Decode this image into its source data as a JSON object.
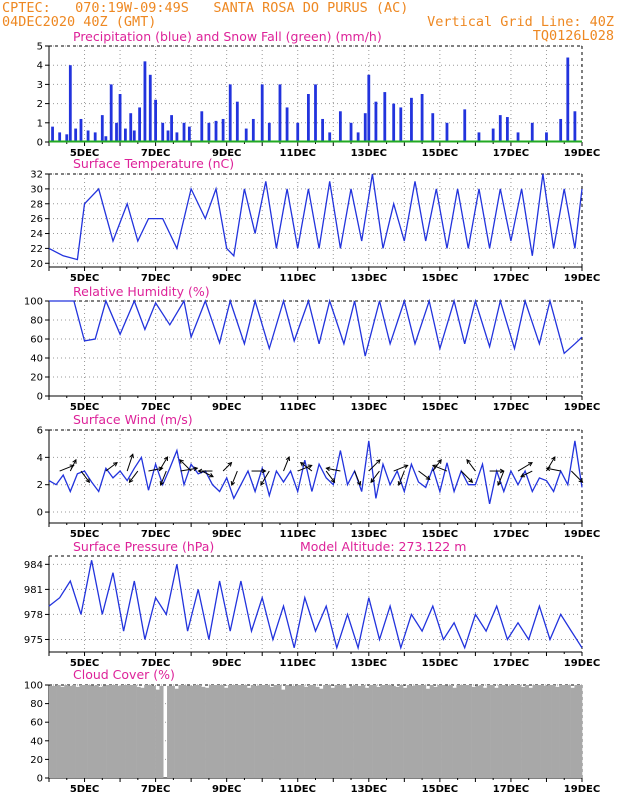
{
  "header": {
    "line1": "CPTEC:   070:19W-09:49S   SANTA ROSA DO PURUS (AC)",
    "line2_left": "04DEC2020 40Z (GMT)",
    "line2_right": "Vertical Grid Line: 40Z",
    "line3_right": "TQ0126L028"
  },
  "x_labels": [
    "5DEC",
    "7DEC",
    "9DEC",
    "11DEC",
    "13DEC",
    "15DEC",
    "17DEC",
    "19DEC"
  ],
  "colors": {
    "accent": "#ee8822",
    "title": "#dd2299",
    "line": "#2233dd",
    "snow": "#22aa22",
    "cloud": "#a8a8a8"
  },
  "chart_data": [
    {
      "type": "bar",
      "title": "Precipitation (blue) and Snow Fall (green) (mm/h)",
      "ylim": [
        0,
        5
      ],
      "yticks": [
        "0",
        "1",
        "2",
        "3",
        "4",
        "5"
      ],
      "x_range": [
        4,
        19
      ],
      "grid": true,
      "series": [
        {
          "name": "Precipitation",
          "x": [
            4.1,
            4.3,
            4.5,
            4.6,
            4.75,
            4.9,
            5.1,
            5.3,
            5.5,
            5.6,
            5.75,
            5.9,
            6.0,
            6.15,
            6.3,
            6.4,
            6.55,
            6.7,
            6.85,
            7.0,
            7.2,
            7.35,
            7.45,
            7.6,
            7.8,
            7.95,
            8.3,
            8.5,
            8.7,
            8.9,
            9.1,
            9.3,
            9.55,
            9.75,
            10.0,
            10.2,
            10.5,
            10.7,
            11.0,
            11.3,
            11.5,
            11.7,
            11.9,
            12.2,
            12.5,
            12.7,
            12.9,
            13.0,
            13.2,
            13.45,
            13.7,
            13.9,
            14.2,
            14.5,
            14.8,
            15.2,
            15.7,
            16.1,
            16.5,
            16.7,
            16.9,
            17.2,
            17.6,
            18.0,
            18.4,
            18.6,
            18.8
          ],
          "values": [
            0.8,
            0.5,
            0.4,
            4.0,
            0.7,
            1.2,
            0.6,
            0.5,
            1.4,
            0.3,
            3.0,
            1.0,
            2.5,
            0.7,
            1.5,
            0.6,
            1.8,
            4.2,
            3.5,
            2.2,
            1.0,
            0.6,
            1.4,
            0.5,
            1.0,
            0.8,
            1.6,
            1.0,
            1.1,
            1.2,
            3.0,
            2.1,
            0.7,
            1.2,
            3.0,
            1.0,
            3.0,
            1.8,
            1.0,
            2.5,
            3.0,
            1.2,
            0.5,
            1.6,
            1.0,
            0.5,
            1.5,
            3.5,
            2.1,
            2.6,
            2.0,
            1.8,
            2.3,
            2.5,
            1.5,
            1.0,
            1.7,
            0.5,
            0.7,
            1.4,
            1.3,
            0.5,
            1.0,
            0.5,
            1.2,
            4.4,
            1.6
          ]
        },
        {
          "name": "Snow Fall",
          "x": [
            4.0,
            19.0
          ],
          "values": [
            0,
            0
          ]
        }
      ]
    },
    {
      "type": "line",
      "title": "Surface Temperature (nC)",
      "ylim": [
        19.5,
        32
      ],
      "yticks": [
        "20",
        "22",
        "24",
        "26",
        "28",
        "30",
        "32"
      ],
      "x": [
        4.0,
        4.4,
        4.8,
        5.0,
        5.4,
        5.8,
        6.2,
        6.5,
        6.8,
        7.2,
        7.6,
        8.0,
        8.4,
        8.7,
        9.0,
        9.2,
        9.5,
        9.8,
        10.1,
        10.4,
        10.7,
        11.0,
        11.3,
        11.6,
        11.9,
        12.2,
        12.5,
        12.8,
        13.1,
        13.4,
        13.7,
        14.0,
        14.3,
        14.6,
        14.9,
        15.2,
        15.5,
        15.8,
        16.1,
        16.4,
        16.7,
        17.0,
        17.3,
        17.6,
        17.9,
        18.2,
        18.5,
        18.8,
        19.0
      ],
      "y": [
        22,
        21,
        20.5,
        28,
        30,
        23,
        28,
        23,
        26,
        26,
        22,
        30,
        26,
        30,
        22,
        21,
        30,
        24,
        31,
        22,
        30,
        22,
        30,
        22,
        31,
        22,
        30,
        23,
        32,
        22,
        28,
        23,
        31,
        23,
        30,
        22,
        30,
        22,
        30,
        22,
        30,
        23,
        30,
        21,
        32,
        22,
        30,
        22,
        30
      ]
    },
    {
      "type": "line",
      "title": "Relative Humidity (%)",
      "ylim": [
        0,
        100
      ],
      "yticks": [
        "0",
        "20",
        "40",
        "60",
        "80",
        "100"
      ],
      "x": [
        4.0,
        4.5,
        4.7,
        5.0,
        5.3,
        5.6,
        6.0,
        6.4,
        6.7,
        7.0,
        7.4,
        7.8,
        8.0,
        8.4,
        8.8,
        9.1,
        9.5,
        9.8,
        10.2,
        10.6,
        10.9,
        11.3,
        11.6,
        11.9,
        12.3,
        12.6,
        12.9,
        13.3,
        13.6,
        14.0,
        14.3,
        14.7,
        15.0,
        15.4,
        15.7,
        16.0,
        16.4,
        16.7,
        17.1,
        17.4,
        17.8,
        18.1,
        18.5,
        18.8,
        19.0
      ],
      "y": [
        100,
        100,
        100,
        58,
        60,
        100,
        65,
        100,
        70,
        98,
        75,
        100,
        62,
        100,
        56,
        100,
        55,
        100,
        50,
        100,
        58,
        100,
        55,
        100,
        55,
        100,
        42,
        100,
        55,
        100,
        55,
        100,
        50,
        100,
        55,
        100,
        52,
        100,
        50,
        100,
        55,
        100,
        45,
        55,
        62
      ]
    },
    {
      "type": "line",
      "title": "Surface Wind (m/s)",
      "ylim": [
        -0.8,
        6
      ],
      "yticks": [
        "0",
        "2",
        "4",
        "6"
      ],
      "x": [
        4.0,
        4.2,
        4.4,
        4.6,
        4.8,
        5.0,
        5.2,
        5.4,
        5.6,
        5.8,
        6.0,
        6.2,
        6.4,
        6.6,
        6.8,
        7.0,
        7.2,
        7.4,
        7.6,
        7.8,
        8.0,
        8.2,
        8.4,
        8.6,
        8.8,
        9.0,
        9.2,
        9.4,
        9.6,
        9.8,
        10.0,
        10.2,
        10.4,
        10.6,
        10.8,
        11.0,
        11.2,
        11.4,
        11.6,
        11.8,
        12.0,
        12.2,
        12.4,
        12.6,
        12.8,
        13.0,
        13.2,
        13.4,
        13.6,
        13.8,
        14.0,
        14.2,
        14.4,
        14.6,
        14.8,
        15.0,
        15.2,
        15.4,
        15.6,
        15.8,
        16.0,
        16.2,
        16.4,
        16.6,
        16.8,
        17.0,
        17.2,
        17.4,
        17.6,
        17.8,
        18.0,
        18.2,
        18.4,
        18.6,
        18.8,
        19.0
      ],
      "y": [
        2.3,
        2.0,
        2.7,
        1.5,
        2.8,
        3.0,
        2.2,
        1.5,
        3.2,
        2.5,
        3.0,
        2.3,
        3.2,
        4.0,
        1.6,
        3.5,
        2.0,
        3.2,
        4.5,
        2.0,
        3.5,
        2.8,
        3.0,
        2.0,
        1.5,
        2.5,
        1.0,
        2.0,
        3.0,
        1.5,
        3.2,
        1.2,
        3.0,
        2.2,
        3.0,
        1.5,
        3.8,
        1.5,
        3.5,
        2.5,
        2.0,
        4.5,
        2.0,
        3.0,
        1.5,
        5.2,
        1.0,
        3.5,
        2.0,
        3.0,
        1.5,
        3.5,
        2.2,
        1.8,
        3.2,
        1.5,
        3.6,
        1.5,
        3.0,
        2.0,
        2.0,
        3.5,
        0.6,
        3.0,
        1.5,
        3.0,
        2.0,
        3.0,
        1.5,
        2.5,
        2.3,
        1.5,
        3.0,
        2.0,
        5.2,
        1.8
      ],
      "vectors": [
        [
          4.3,
          0.5,
          0.2
        ],
        [
          4.6,
          0.2,
          0.4
        ],
        [
          4.9,
          0.3,
          -0.4
        ],
        [
          5.6,
          0.4,
          0.3
        ],
        [
          6.2,
          0.2,
          0.6
        ],
        [
          6.5,
          -0.3,
          -0.4
        ],
        [
          6.8,
          0.5,
          0.1
        ],
        [
          7.1,
          0.3,
          0.5
        ],
        [
          7.3,
          -0.2,
          -0.5
        ],
        [
          7.7,
          0.6,
          0.1
        ],
        [
          8.0,
          -0.4,
          0.4
        ],
        [
          8.3,
          0.4,
          -0.2
        ],
        [
          8.6,
          -0.5,
          0.0
        ],
        [
          8.9,
          0.3,
          0.3
        ],
        [
          9.3,
          -0.2,
          -0.5
        ],
        [
          9.7,
          0.5,
          0.0
        ],
        [
          10.2,
          -0.3,
          -0.5
        ],
        [
          10.6,
          0.2,
          0.5
        ],
        [
          11.0,
          0.5,
          0.2
        ],
        [
          11.4,
          -0.4,
          0.3
        ],
        [
          11.8,
          0.3,
          -0.4
        ],
        [
          12.2,
          -0.5,
          0.1
        ],
        [
          12.6,
          0.2,
          -0.5
        ],
        [
          13.0,
          0.4,
          0.4
        ],
        [
          13.3,
          -0.3,
          -0.4
        ],
        [
          13.7,
          0.5,
          0.2
        ],
        [
          14.0,
          -0.2,
          -0.5
        ],
        [
          14.4,
          0.4,
          -0.3
        ],
        [
          14.8,
          0.3,
          0.4
        ],
        [
          15.2,
          -0.5,
          0.2
        ],
        [
          15.6,
          0.4,
          -0.4
        ],
        [
          16.0,
          -0.3,
          0.4
        ],
        [
          16.4,
          0.5,
          0.0
        ],
        [
          16.8,
          -0.2,
          -0.5
        ],
        [
          17.2,
          0.5,
          0.3
        ],
        [
          17.6,
          -0.4,
          -0.2
        ],
        [
          18.0,
          0.3,
          0.5
        ],
        [
          18.4,
          -0.5,
          0.1
        ],
        [
          18.7,
          0.4,
          -0.4
        ]
      ]
    },
    {
      "type": "line",
      "title": "Surface Pressure (hPa)",
      "annotation": "Model Altitude: 273.122 m",
      "ylim": [
        973.5,
        985
      ],
      "yticks": [
        "975",
        "978",
        "981",
        "984"
      ],
      "x": [
        4.0,
        4.3,
        4.6,
        4.9,
        5.2,
        5.5,
        5.8,
        6.1,
        6.4,
        6.7,
        7.0,
        7.3,
        7.6,
        7.9,
        8.2,
        8.5,
        8.8,
        9.1,
        9.4,
        9.7,
        10.0,
        10.3,
        10.6,
        10.9,
        11.2,
        11.5,
        11.8,
        12.1,
        12.4,
        12.7,
        13.0,
        13.3,
        13.6,
        13.9,
        14.2,
        14.5,
        14.8,
        15.1,
        15.4,
        15.7,
        16.0,
        16.3,
        16.6,
        16.9,
        17.2,
        17.5,
        17.8,
        18.1,
        18.4,
        18.7,
        19.0
      ],
      "y": [
        979,
        980,
        982,
        978,
        984.5,
        978,
        983,
        976,
        982,
        975,
        980,
        978,
        984,
        976,
        981,
        975,
        982,
        976,
        982,
        976,
        980,
        975,
        979,
        974,
        980,
        976,
        979,
        974,
        978,
        974,
        980,
        975,
        979,
        974,
        978,
        976,
        979,
        975,
        977,
        974,
        978,
        976,
        979,
        975,
        977,
        975,
        979,
        975,
        978,
        976,
        974
      ]
    },
    {
      "type": "bar",
      "title": "Cloud Cover (%)",
      "ylim": [
        0,
        100
      ],
      "yticks": [
        "0",
        "20",
        "40",
        "60",
        "80",
        "100"
      ],
      "x_range": [
        4,
        19
      ],
      "values": [
        99,
        99,
        100,
        98,
        100,
        99,
        100,
        98,
        100,
        100,
        100,
        99,
        100,
        98,
        99,
        100,
        100,
        100,
        99,
        100,
        100,
        100,
        100,
        98,
        97,
        100,
        100,
        99,
        95,
        99,
        0,
        99,
        99,
        96,
        100,
        100,
        99,
        99,
        100,
        100,
        98,
        97,
        100,
        100,
        100,
        100,
        97,
        100,
        100,
        100,
        100,
        100,
        97,
        100,
        99,
        100,
        100,
        100,
        98,
        100,
        100,
        95,
        100,
        99,
        99,
        100,
        100,
        98,
        100,
        100,
        98,
        96,
        100,
        100,
        97,
        100,
        100,
        100,
        97,
        99,
        100,
        99,
        100,
        97,
        100,
        100,
        98,
        100,
        100,
        100,
        99,
        98,
        100,
        97,
        100,
        99,
        100,
        100,
        100,
        96,
        100,
        98,
        100,
        100,
        99,
        100,
        97,
        100,
        100,
        100,
        100,
        98,
        99,
        100,
        97,
        100,
        100,
        97,
        100,
        100,
        99,
        100,
        100,
        100,
        98,
        100,
        97,
        100,
        100,
        100,
        99,
        100,
        100,
        98,
        100,
        100,
        100,
        97,
        100,
        100
      ]
    }
  ]
}
